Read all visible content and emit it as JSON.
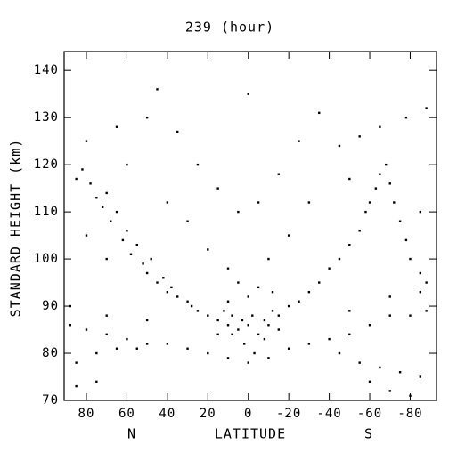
{
  "chart_data": {
    "type": "scatter",
    "title": "239 (hour)",
    "y_label": "STANDARD HEIGHT (km)",
    "x_label": "LATITUDE",
    "annotations": [
      "N",
      "S"
    ],
    "color": "#000000",
    "xlim": [
      91,
      -93
    ],
    "ylim": [
      70,
      144
    ],
    "xticks": [
      80,
      60,
      40,
      20,
      0,
      -20,
      -40,
      -60,
      -80
    ],
    "yticks": [
      70,
      80,
      90,
      100,
      110,
      120,
      130,
      140
    ],
    "x": [
      85,
      82,
      78,
      75,
      72,
      70,
      68,
      65,
      62,
      60,
      58,
      55,
      52,
      50,
      48,
      45,
      42,
      40,
      38,
      35,
      30,
      28,
      25,
      20,
      15,
      12,
      10,
      8,
      5,
      3,
      0,
      -2,
      -5,
      -8,
      -10,
      -12,
      -15,
      -20,
      -25,
      -30,
      -35,
      -40,
      -45,
      -50,
      -55,
      -58,
      -60,
      -63,
      -65,
      -68,
      -70,
      -72,
      -75,
      -78,
      -80,
      -85,
      -88,
      88,
      80,
      70,
      60,
      50,
      40,
      30,
      20,
      10,
      0,
      -10,
      -20,
      -30,
      -40,
      -50,
      -60,
      -70,
      -80,
      -88,
      85,
      75,
      65,
      55,
      -45,
      -55,
      -65,
      -75,
      -85,
      85,
      75,
      -60,
      -70,
      -80,
      88,
      70,
      50,
      -50,
      -70,
      -85,
      80,
      65,
      50,
      45,
      35,
      25,
      15,
      5,
      -5,
      -15,
      -25,
      -35,
      -45,
      -55,
      -65,
      -78,
      -88,
      30,
      20,
      10,
      -10,
      -20,
      0,
      -30,
      60,
      40,
      -50,
      70,
      80,
      -85,
      0,
      5,
      -5,
      10,
      -12,
      2,
      -3,
      8,
      -8,
      15,
      -15
    ],
    "y": [
      117,
      119,
      116,
      113,
      111,
      114,
      108,
      110,
      104,
      106,
      101,
      103,
      99,
      97,
      100,
      95,
      96,
      93,
      94,
      92,
      91,
      90,
      89,
      88,
      87,
      89,
      86,
      88,
      85,
      87,
      86,
      88,
      84,
      87,
      86,
      89,
      88,
      90,
      91,
      93,
      95,
      98,
      100,
      103,
      106,
      110,
      112,
      115,
      118,
      120,
      116,
      112,
      108,
      104,
      100,
      97,
      95,
      86,
      85,
      84,
      83,
      82,
      82,
      81,
      80,
      79,
      78,
      79,
      81,
      82,
      83,
      84,
      86,
      88,
      88,
      89,
      78,
      80,
      81,
      81,
      80,
      78,
      77,
      76,
      75,
      73,
      74,
      74,
      72,
      71,
      90,
      88,
      87,
      89,
      92,
      93,
      125,
      128,
      130,
      136,
      127,
      120,
      115,
      110,
      112,
      118,
      125,
      131,
      124,
      126,
      128,
      130,
      132,
      108,
      102,
      98,
      100,
      105,
      135,
      112,
      120,
      112,
      117,
      100,
      105,
      110,
      92,
      95,
      94,
      91,
      93,
      82,
      80,
      84,
      83,
      84,
      85
    ]
  }
}
